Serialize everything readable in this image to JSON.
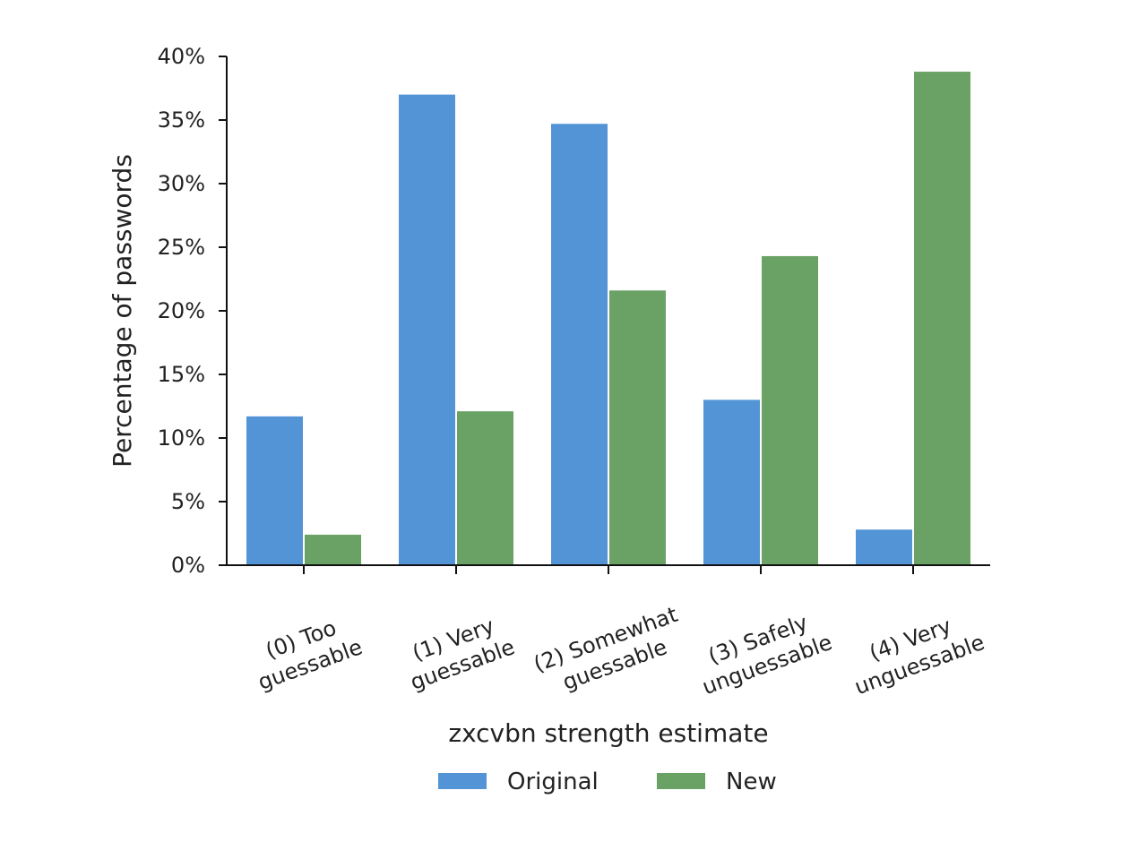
{
  "chart_data": {
    "type": "bar",
    "categories": [
      [
        "(0) Too",
        "guessable"
      ],
      [
        "(1) Very",
        "guessable"
      ],
      [
        "(2) Somewhat",
        "guessable"
      ],
      [
        "(3) Safely",
        "unguessable"
      ],
      [
        "(4) Very",
        "unguessable"
      ]
    ],
    "series": [
      {
        "name": "Original",
        "color": "#5294d6",
        "values": [
          11.7,
          37.0,
          34.7,
          13.0,
          2.8
        ]
      },
      {
        "name": "New",
        "color": "#6aa266",
        "values": [
          2.4,
          12.1,
          21.6,
          24.3,
          38.8
        ]
      }
    ],
    "xlabel": "zxcvbn strength estimate",
    "ylabel": "Percentage of passwords",
    "ylim": [
      0,
      40
    ],
    "yticks": [
      0,
      5,
      10,
      15,
      20,
      25,
      30,
      35,
      40
    ],
    "ytick_labels": [
      "0%",
      "5%",
      "10%",
      "15%",
      "20%",
      "25%",
      "30%",
      "35%",
      "40%"
    ],
    "legend_position": "bottom-center",
    "grid": false
  }
}
